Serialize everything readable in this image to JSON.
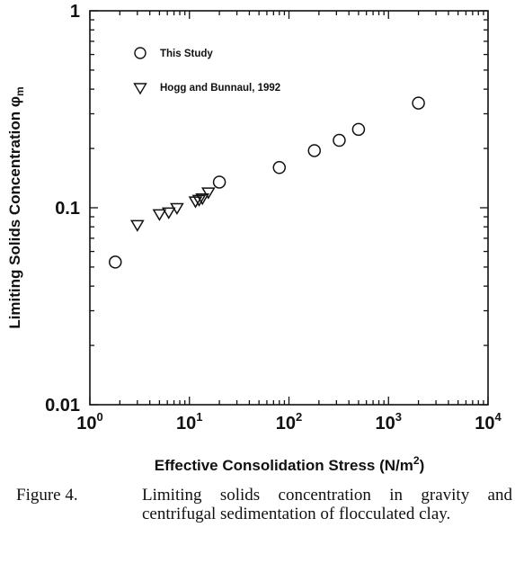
{
  "chart_data": {
    "type": "scatter",
    "xscale": "log",
    "yscale": "log",
    "xlim": [
      1,
      10000
    ],
    "ylim": [
      0.01,
      1
    ],
    "grid": false,
    "legend_position": "top-left",
    "xlabel_main": "Effective Consolidation Stress (N/m",
    "xlabel_sup": "2",
    "xlabel_end": ")",
    "ylabel": "Limiting Solids Concentration φ",
    "ylabel_sub": "m",
    "x_ticks": [
      {
        "base": "10",
        "exp": "0"
      },
      {
        "base": "10",
        "exp": "1"
      },
      {
        "base": "10",
        "exp": "2"
      },
      {
        "base": "10",
        "exp": "3"
      },
      {
        "base": "10",
        "exp": "4"
      }
    ],
    "y_ticks": [
      {
        "value": 1,
        "label": "1"
      },
      {
        "value": 0.1,
        "label": "0.1"
      },
      {
        "value": 0.01,
        "label": "0.01"
      }
    ],
    "series": [
      {
        "name": "This Study",
        "marker": "circle",
        "points": [
          {
            "x": 1.8,
            "y": 0.053
          },
          {
            "x": 20,
            "y": 0.135
          },
          {
            "x": 80,
            "y": 0.16
          },
          {
            "x": 180,
            "y": 0.195
          },
          {
            "x": 320,
            "y": 0.22
          },
          {
            "x": 500,
            "y": 0.25
          },
          {
            "x": 2000,
            "y": 0.34
          }
        ]
      },
      {
        "name": "Hogg and Bunnaul, 1992",
        "marker": "triangle-down",
        "points": [
          {
            "x": 3.0,
            "y": 0.082
          },
          {
            "x": 5.0,
            "y": 0.093
          },
          {
            "x": 6.2,
            "y": 0.095
          },
          {
            "x": 7.5,
            "y": 0.1
          },
          {
            "x": 11.5,
            "y": 0.108
          },
          {
            "x": 12.5,
            "y": 0.11
          },
          {
            "x": 13.5,
            "y": 0.112
          },
          {
            "x": 15.5,
            "y": 0.12
          }
        ]
      }
    ]
  },
  "caption": {
    "label": "Figure 4.",
    "text": "Limiting solids concentration in gravity and centrifugal sedimentation of flocculated clay."
  }
}
